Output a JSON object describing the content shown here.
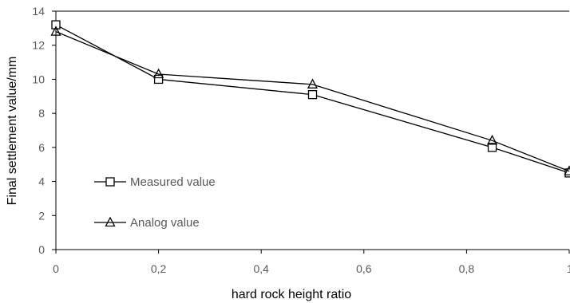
{
  "chart_data": {
    "type": "line",
    "xlabel": "hard rock height ratio",
    "ylabel": "Final settlement value/mm",
    "xlim": [
      0,
      1
    ],
    "ylim": [
      0,
      14
    ],
    "x_ticks": [
      "0",
      "0,2",
      "0,4",
      "0,6",
      "0,8",
      "1"
    ],
    "y_ticks": [
      "0",
      "2",
      "4",
      "6",
      "8",
      "10",
      "12",
      "14"
    ],
    "grid": false,
    "legend_position": "center-left",
    "series": [
      {
        "name": "Measured value",
        "marker": "square",
        "x": [
          0,
          0.2,
          0.5,
          0.85,
          1
        ],
        "y": [
          13.2,
          10.0,
          9.1,
          6.0,
          4.5
        ]
      },
      {
        "name": "Analog value",
        "marker": "triangle",
        "x": [
          0,
          0.2,
          0.5,
          0.85,
          1
        ],
        "y": [
          12.8,
          10.3,
          9.7,
          6.4,
          4.6
        ]
      }
    ],
    "colors": {
      "line": "#000000",
      "axis": "#000000",
      "tick_text": "#595959"
    }
  }
}
